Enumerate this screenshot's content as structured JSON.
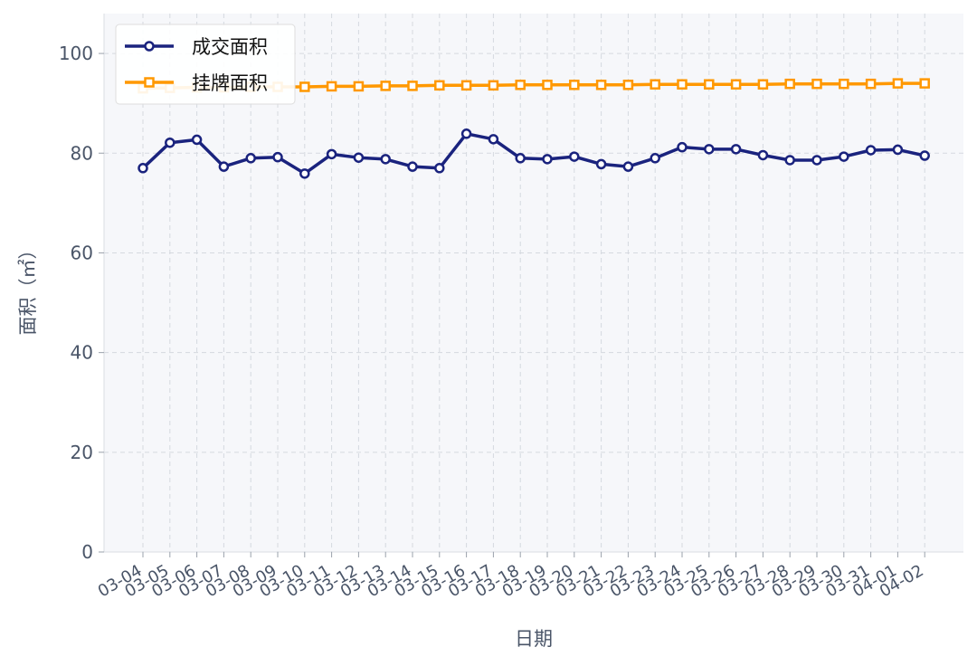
{
  "chart_data": {
    "type": "line",
    "xlabel": "日期",
    "ylabel": "面积（㎡）",
    "ylim": [
      0,
      108
    ],
    "yticks": [
      0,
      20,
      40,
      60,
      80,
      100
    ],
    "grid": true,
    "legend_position": "top-left",
    "x": [
      "03-04",
      "03-05",
      "03-06",
      "03-07",
      "03-08",
      "03-09",
      "03-10",
      "03-11",
      "03-12",
      "03-13",
      "03-14",
      "03-15",
      "03-16",
      "03-17",
      "03-18",
      "03-19",
      "03-20",
      "03-21",
      "03-22",
      "03-23",
      "03-24",
      "03-25",
      "03-26",
      "03-27",
      "03-28",
      "03-29",
      "03-30",
      "03-31",
      "04-01",
      "04-02"
    ],
    "series": [
      {
        "name": "成交面积",
        "color": "#1a237e",
        "marker": "circle",
        "values": [
          77.0,
          82.1,
          82.7,
          77.3,
          79.0,
          79.2,
          75.9,
          79.8,
          79.1,
          78.8,
          77.3,
          77.0,
          83.9,
          82.8,
          79.0,
          78.8,
          79.3,
          77.8,
          77.3,
          79.0,
          81.2,
          80.8,
          80.8,
          79.6,
          78.6,
          78.6,
          79.3,
          80.6,
          80.7,
          79.5
        ]
      },
      {
        "name": "挂牌面积",
        "color": "#ff9800",
        "marker": "square",
        "values": [
          93.0,
          93.1,
          93.2,
          93.2,
          93.3,
          93.3,
          93.3,
          93.4,
          93.4,
          93.5,
          93.5,
          93.6,
          93.6,
          93.6,
          93.7,
          93.7,
          93.7,
          93.7,
          93.7,
          93.8,
          93.8,
          93.8,
          93.8,
          93.8,
          93.9,
          93.9,
          93.9,
          93.9,
          94.0,
          94.0
        ]
      }
    ]
  }
}
